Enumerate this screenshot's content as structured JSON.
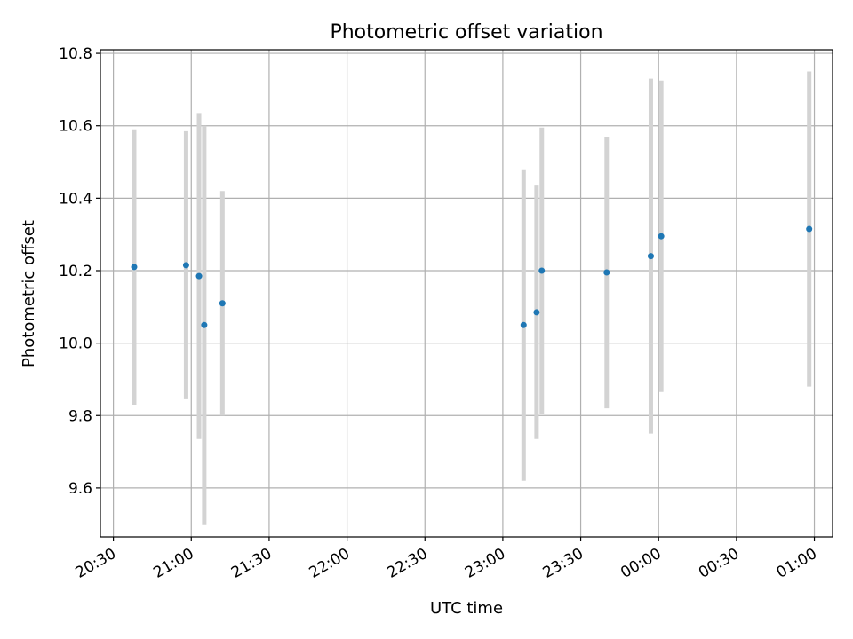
{
  "chart_data": {
    "type": "scatter",
    "title": "Photometric offset variation",
    "xlabel": "UTC time",
    "ylabel": "Photometric offset",
    "x_axis": "time",
    "xlim": [
      "20:25",
      "01:07"
    ],
    "ylim": [
      9.465,
      10.81
    ],
    "grid": true,
    "x_ticks": [
      "20:30",
      "21:00",
      "21:30",
      "22:00",
      "22:30",
      "23:00",
      "23:30",
      "00:00",
      "00:30",
      "01:00"
    ],
    "y_ticks": [
      "9.6",
      "9.8",
      "10.0",
      "10.2",
      "10.4",
      "10.6",
      "10.8"
    ],
    "marker_color": "#1f77b4",
    "errorbar_color": "#d3d3d3",
    "points": [
      {
        "time": "20:38",
        "y": 10.21,
        "err": 0.38
      },
      {
        "time": "20:58",
        "y": 10.215,
        "err": 0.37
      },
      {
        "time": "21:03",
        "y": 10.185,
        "err": 0.45
      },
      {
        "time": "21:05",
        "y": 10.05,
        "err": 0.55
      },
      {
        "time": "21:12",
        "y": 10.11,
        "err": 0.31
      },
      {
        "time": "23:08",
        "y": 10.05,
        "err": 0.43
      },
      {
        "time": "23:13",
        "y": 10.085,
        "err": 0.35
      },
      {
        "time": "23:15",
        "y": 10.2,
        "err": 0.395
      },
      {
        "time": "23:40",
        "y": 10.195,
        "err": 0.375
      },
      {
        "time": "23:57",
        "y": 10.24,
        "err": 0.49
      },
      {
        "time": "00:01",
        "y": 10.295,
        "err": 0.43
      },
      {
        "time": "00:58",
        "y": 10.315,
        "err": 0.435
      }
    ]
  }
}
